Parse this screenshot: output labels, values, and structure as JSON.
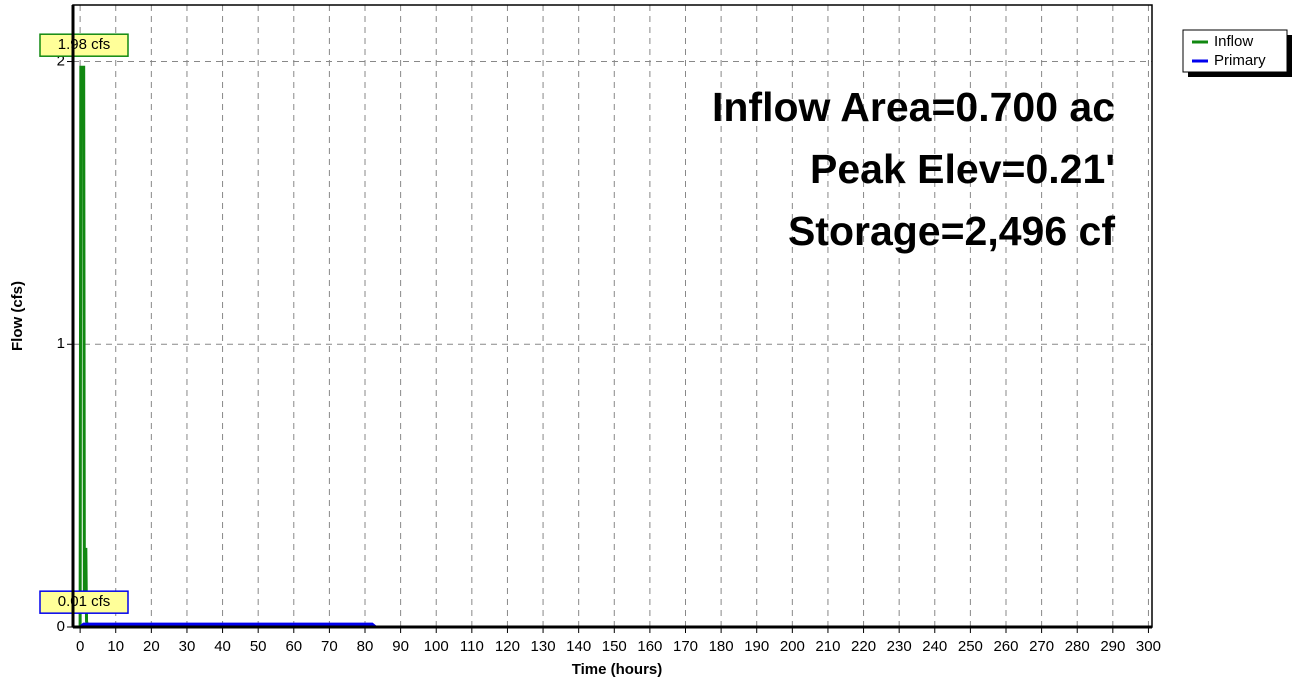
{
  "chart_data": {
    "type": "line",
    "xlabel": "Time  (hours)",
    "ylabel": "Flow  (cfs)",
    "annotations": [
      "Inflow Area=0.700 ac",
      "Peak Elev=0.21'",
      "Storage=2,496 cf"
    ],
    "xlim": [
      -2,
      301
    ],
    "ylim": [
      0,
      2.2
    ],
    "xticks": [
      0,
      10,
      20,
      30,
      40,
      50,
      60,
      70,
      80,
      90,
      100,
      110,
      120,
      130,
      140,
      150,
      160,
      170,
      180,
      190,
      200,
      210,
      220,
      230,
      240,
      250,
      260,
      270,
      280,
      290,
      300
    ],
    "yticks": [
      0,
      1,
      2
    ],
    "grid": true,
    "legend": "upper right",
    "series": [
      {
        "name": "Inflow",
        "color": "#118811",
        "peak_label": "1.98 cfs",
        "x": [
          0,
          0.2,
          0.5,
          1.0,
          1.2,
          1.6,
          1.8,
          2.2,
          300
        ],
        "values": [
          0,
          1.98,
          1.98,
          1.98,
          0.05,
          0.28,
          0.02,
          0,
          0
        ]
      },
      {
        "name": "Primary",
        "color": "#0000ee",
        "peak_label": "0.01 cfs",
        "x": [
          0,
          1,
          82,
          83,
          300
        ],
        "values": [
          0,
          0.01,
          0.01,
          0,
          0
        ]
      }
    ]
  }
}
